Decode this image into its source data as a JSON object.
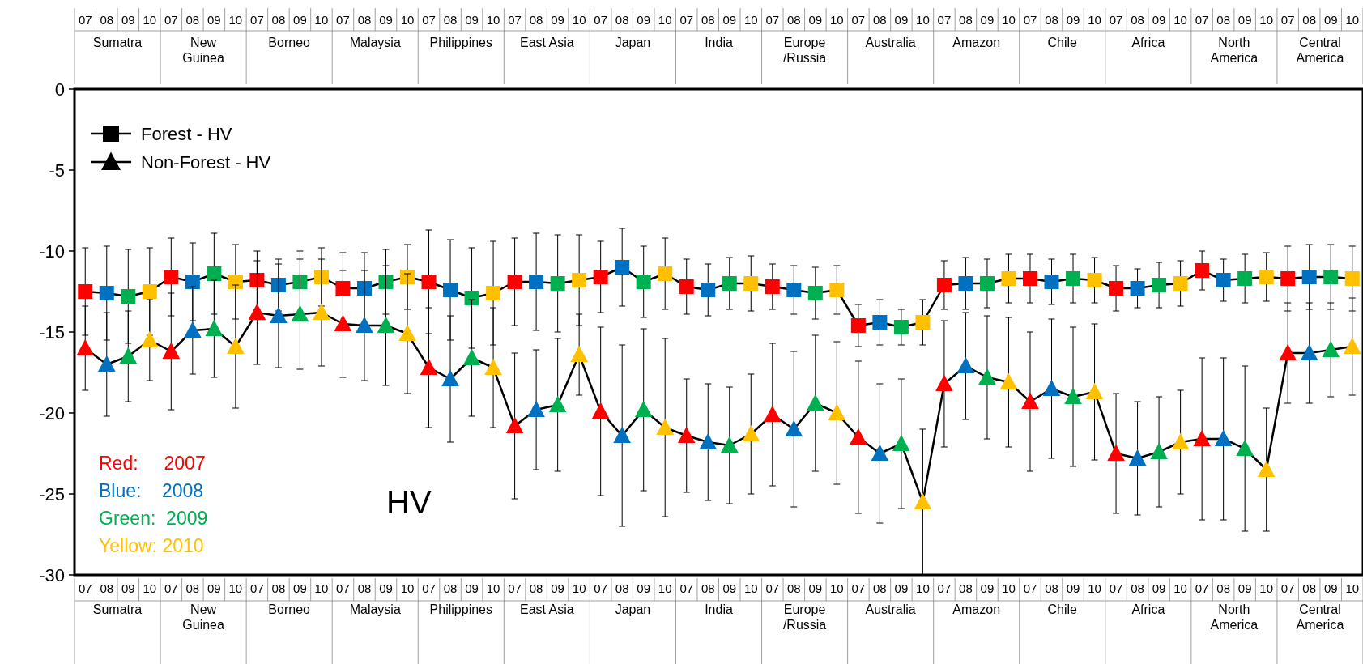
{
  "chart_data": {
    "type": "line",
    "categories": [
      "07",
      "08",
      "09",
      "10",
      "07",
      "08",
      "09",
      "10",
      "07",
      "08",
      "09",
      "10",
      "07",
      "08",
      "09",
      "10",
      "07",
      "08",
      "09",
      "10",
      "07",
      "08",
      "09",
      "10",
      "07",
      "08",
      "09",
      "10",
      "07",
      "08",
      "09",
      "10",
      "07",
      "08",
      "09",
      "10",
      "07",
      "08",
      "09",
      "10",
      "07",
      "08",
      "09",
      "10",
      "07",
      "08",
      "09",
      "10",
      "07",
      "08",
      "09",
      "10",
      "07",
      "08",
      "09",
      "10",
      "07",
      "08",
      "09",
      "10"
    ],
    "ylim": [
      -30,
      0
    ],
    "yticks": [
      -30,
      -25,
      -20,
      -15,
      -10,
      -5,
      0
    ],
    "grid": false,
    "legend": "top left",
    "series": [
      {
        "name": "Forest - HV",
        "color": "#000000",
        "marker": "square",
        "colors": [
          "#ff0000",
          "#0070c0",
          "#00b050",
          "#ffc000",
          "#ff0000",
          "#0070c0",
          "#00b050",
          "#ffc000",
          "#ff0000",
          "#0070c0",
          "#00b050",
          "#ffc000",
          "#ff0000",
          "#0070c0",
          "#00b050",
          "#ffc000",
          "#ff0000",
          "#0070c0",
          "#00b050",
          "#ffc000",
          "#ff0000",
          "#0070c0",
          "#00b050",
          "#ffc000",
          "#ff0000",
          "#0070c0",
          "#00b050",
          "#ffc000",
          "#ff0000",
          "#0070c0",
          "#00b050",
          "#ffc000",
          "#ff0000",
          "#0070c0",
          "#00b050",
          "#ffc000",
          "#ff0000",
          "#0070c0",
          "#00b050",
          "#ffc000",
          "#ff0000",
          "#0070c0",
          "#00b050",
          "#ffc000",
          "#ff0000",
          "#0070c0",
          "#00b050",
          "#ffc000",
          "#ff0000",
          "#0070c0",
          "#00b050",
          "#ffc000",
          "#ff0000",
          "#0070c0",
          "#00b050",
          "#ffc000",
          "#ff0000",
          "#0070c0",
          "#00b050",
          "#ffc000"
        ],
        "values": [
          -12.5,
          -12.6,
          -12.8,
          -12.5,
          -11.6,
          -11.9,
          -11.4,
          -11.9,
          -11.8,
          -12.1,
          -11.9,
          -11.6,
          -12.3,
          -12.3,
          -11.9,
          -11.6,
          -11.9,
          -12.4,
          -12.9,
          -12.6,
          -11.9,
          -11.9,
          -12.0,
          -11.8,
          -11.6,
          -11.0,
          -11.9,
          -11.4,
          -12.2,
          -12.4,
          -12.0,
          -12.0,
          -12.2,
          -12.4,
          -12.6,
          -12.4,
          -14.6,
          -14.4,
          -14.7,
          -14.4,
          -12.1,
          -12.0,
          -12.0,
          -11.7,
          -11.7,
          -11.9,
          -11.7,
          -11.8,
          -12.3,
          -12.3,
          -12.1,
          -12.0,
          -11.2,
          -11.8,
          -11.7,
          -11.6,
          -11.7,
          -11.6,
          -11.6,
          -11.7
        ],
        "errors": [
          2.7,
          2.9,
          2.9,
          2.7,
          2.4,
          2.4,
          2.5,
          2.3,
          1.8,
          1.6,
          1.9,
          1.8,
          2.2,
          2.2,
          2.0,
          2.0,
          3.2,
          3.1,
          3.1,
          3.2,
          2.7,
          3.0,
          3.0,
          2.8,
          2.2,
          2.4,
          2.2,
          2.2,
          1.7,
          1.6,
          1.6,
          1.7,
          1.4,
          1.5,
          1.6,
          1.5,
          1.3,
          1.4,
          1.1,
          1.4,
          1.5,
          1.6,
          1.5,
          1.5,
          1.5,
          1.4,
          1.5,
          1.4,
          1.4,
          1.2,
          1.4,
          1.4,
          1.2,
          1.3,
          1.5,
          1.5,
          2.0,
          2.0,
          2.0,
          2.0
        ]
      },
      {
        "name": "Non-Forest - HV",
        "color": "#000000",
        "marker": "triangle",
        "colors": [
          "#ff0000",
          "#0070c0",
          "#00b050",
          "#ffc000",
          "#ff0000",
          "#0070c0",
          "#00b050",
          "#ffc000",
          "#ff0000",
          "#0070c0",
          "#00b050",
          "#ffc000",
          "#ff0000",
          "#0070c0",
          "#00b050",
          "#ffc000",
          "#ff0000",
          "#0070c0",
          "#00b050",
          "#ffc000",
          "#ff0000",
          "#0070c0",
          "#00b050",
          "#ffc000",
          "#ff0000",
          "#0070c0",
          "#00b050",
          "#ffc000",
          "#ff0000",
          "#0070c0",
          "#00b050",
          "#ffc000",
          "#ff0000",
          "#0070c0",
          "#00b050",
          "#ffc000",
          "#ff0000",
          "#0070c0",
          "#00b050",
          "#ffc000",
          "#ff0000",
          "#0070c0",
          "#00b050",
          "#ffc000",
          "#ff0000",
          "#0070c0",
          "#00b050",
          "#ffc000",
          "#ff0000",
          "#0070c0",
          "#00b050",
          "#ffc000",
          "#ff0000",
          "#0070c0",
          "#00b050",
          "#ffc000",
          "#ff0000",
          "#0070c0",
          "#00b050",
          "#ffc000"
        ],
        "values": [
          -16.0,
          -17.0,
          -16.5,
          -15.5,
          -16.2,
          -14.9,
          -14.8,
          -15.9,
          -13.8,
          -14.0,
          -13.9,
          -13.8,
          -14.5,
          -14.6,
          -14.6,
          -15.1,
          -17.2,
          -17.9,
          -16.6,
          -17.2,
          -20.8,
          -19.8,
          -19.5,
          -16.4,
          -19.9,
          -21.4,
          -19.8,
          -20.9,
          -21.4,
          -21.8,
          -22.0,
          -21.3,
          -20.1,
          -21.0,
          -19.4,
          -20.0,
          -21.5,
          -22.5,
          -21.9,
          -25.5,
          -18.2,
          -17.1,
          -17.8,
          -18.1,
          -19.3,
          -18.5,
          -19.0,
          -18.7,
          -22.5,
          -22.8,
          -22.4,
          -21.8,
          -21.6,
          -21.6,
          -22.2,
          -23.5,
          -16.3,
          -16.3,
          -16.1,
          -15.9
        ],
        "errors": [
          2.6,
          3.2,
          2.8,
          2.5,
          3.6,
          2.7,
          3.0,
          3.8,
          3.2,
          3.2,
          3.4,
          3.3,
          3.3,
          3.4,
          3.7,
          3.7,
          3.7,
          3.9,
          3.6,
          3.7,
          4.5,
          3.7,
          4.1,
          2.5,
          5.2,
          5.6,
          5.0,
          5.5,
          3.5,
          3.6,
          3.6,
          3.7,
          4.4,
          4.8,
          4.2,
          4.4,
          4.7,
          4.3,
          4.0,
          4.5,
          3.9,
          3.3,
          3.8,
          4.0,
          4.3,
          4.3,
          4.3,
          4.2,
          3.7,
          3.5,
          3.4,
          3.2,
          5.0,
          5.0,
          5.1,
          3.8,
          3.1,
          3.1,
          2.9,
          3.0
        ]
      }
    ],
    "annotations": [
      "Sumatra",
      "New\nGuinea",
      "Borneo",
      "Malaysia",
      "Philippines",
      "East Asia",
      "Japan",
      "India",
      "Europe\n/Russia",
      "Australia",
      "Amazon",
      "Chile",
      "Africa",
      "North\nAmerica",
      "Central\nAmerica",
      "Red:     2007",
      "Blue:    2008",
      "Green:  2009",
      "Yellow: 2010",
      "HV"
    ]
  }
}
